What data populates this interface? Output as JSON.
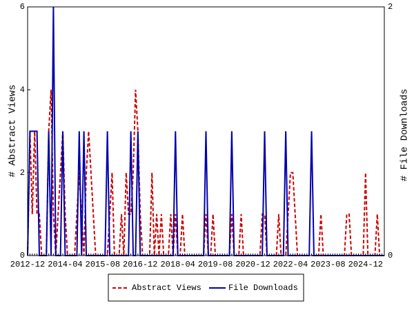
{
  "chart_data": {
    "type": "line",
    "ylabel": "# Abstract Views",
    "y2label": "# File Downloads",
    "ylim": [
      0,
      6
    ],
    "yticks": [
      0,
      2,
      4,
      6
    ],
    "y2lim": [
      0,
      2
    ],
    "y2ticks": [
      0,
      2
    ],
    "legend": "bottom",
    "categories": [
      "2012-12",
      null,
      null,
      null,
      null,
      null,
      null,
      null,
      null,
      null,
      null,
      null,
      null,
      null,
      null,
      null,
      "2014-04",
      null,
      null,
      null,
      null,
      null,
      null,
      null,
      null,
      null,
      null,
      null,
      null,
      null,
      null,
      null,
      "2015-08",
      null,
      null,
      null,
      null,
      null,
      null,
      null,
      null,
      null,
      null,
      null,
      null,
      null,
      null,
      null,
      "2016-12",
      null,
      null,
      null,
      null,
      null,
      null,
      null,
      null,
      null,
      null,
      null,
      null,
      null,
      null,
      null,
      "2018-04",
      null,
      null,
      null,
      null,
      null,
      null,
      null,
      null,
      null,
      null,
      null,
      null,
      null,
      null,
      null,
      "2019-08",
      null,
      null,
      null,
      null,
      null,
      null,
      null,
      null,
      null,
      null,
      null,
      null,
      null,
      null,
      null,
      "2020-12",
      null,
      null,
      null,
      null,
      null,
      null,
      null,
      null,
      null,
      null,
      null,
      null,
      null,
      null,
      null,
      "2022-04",
      null,
      null,
      null,
      null,
      null,
      null,
      null,
      null,
      null,
      null,
      null,
      null,
      null,
      null,
      null,
      "2023-08",
      null,
      null,
      null,
      null,
      null,
      null,
      null,
      null,
      null,
      null,
      null,
      null,
      null,
      null,
      null,
      "2024-12",
      null,
      null,
      null,
      null,
      null,
      null,
      null,
      null
    ],
    "series": [
      {
        "name": "Abstract Views",
        "color": "#cc0000",
        "dash": true,
        "values": [
          0,
          3,
          1,
          3,
          1,
          1,
          0,
          0,
          0,
          3,
          4,
          1,
          0,
          1,
          2,
          3,
          1,
          0,
          0,
          0,
          0,
          1,
          2,
          1,
          0,
          2,
          3,
          2,
          1,
          0,
          0,
          0,
          0,
          0,
          0,
          1,
          2,
          0,
          0,
          0,
          1,
          0,
          2,
          1,
          1,
          2,
          4,
          3,
          1,
          0,
          0,
          0,
          0,
          2,
          0,
          1,
          0,
          1,
          0,
          0,
          0,
          1,
          0,
          1,
          0,
          0,
          1,
          0,
          0,
          0,
          0,
          0,
          0,
          0,
          0,
          0,
          1,
          0,
          0,
          1,
          0,
          0,
          0,
          0,
          0,
          0,
          0,
          1,
          0,
          0,
          0,
          1,
          0,
          0,
          0,
          0,
          0,
          0,
          0,
          0,
          1,
          1,
          0,
          0,
          0,
          0,
          0,
          1,
          0,
          0,
          0,
          1,
          2,
          2,
          1,
          0,
          0,
          0,
          0,
          0,
          0,
          0,
          0,
          0,
          0,
          1,
          0,
          0,
          0,
          0,
          0,
          0,
          0,
          0,
          0,
          0,
          1,
          1,
          0,
          0,
          0,
          0,
          0,
          0,
          2,
          0,
          0,
          0,
          0,
          1,
          0,
          0,
          0
        ]
      },
      {
        "name": "File Downloads",
        "color": "#0000aa",
        "axis": "y2",
        "values": [
          0,
          1,
          1,
          1,
          1,
          0,
          0,
          0,
          0,
          1,
          0,
          2,
          0,
          0,
          0,
          1,
          0,
          0,
          0,
          0,
          0,
          0,
          1,
          0,
          1,
          0,
          0,
          0,
          0,
          0,
          0,
          0,
          0,
          0,
          1,
          0,
          0,
          0,
          0,
          0,
          0,
          0,
          0,
          0,
          1,
          0,
          0,
          1,
          0,
          0,
          0,
          0,
          0,
          0,
          0,
          0,
          0,
          0,
          0,
          0,
          0,
          0,
          0,
          1,
          0,
          0,
          0,
          0,
          0,
          0,
          0,
          0,
          0,
          0,
          0,
          0,
          1,
          0,
          0,
          0,
          0,
          0,
          0,
          0,
          0,
          0,
          0,
          1,
          0,
          0,
          0,
          0,
          0,
          0,
          0,
          0,
          0,
          0,
          0,
          0,
          0,
          1,
          0,
          0,
          0,
          0,
          0,
          0,
          0,
          0,
          1,
          0,
          0,
          0,
          0,
          0,
          0,
          0,
          0,
          0,
          0,
          1,
          0,
          0,
          0,
          0,
          0,
          0,
          0,
          0,
          0,
          0,
          0,
          0,
          0,
          0,
          0,
          0,
          0,
          0,
          0,
          0,
          0,
          0,
          0,
          0,
          0,
          0,
          0,
          0,
          0,
          0,
          0
        ]
      }
    ]
  }
}
